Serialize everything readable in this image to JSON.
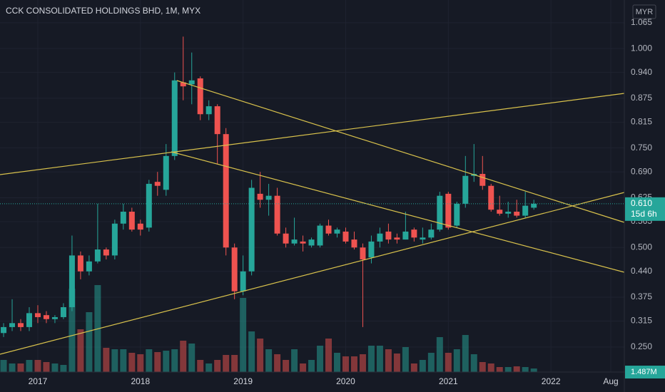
{
  "chart_data": {
    "type": "candlestick",
    "title": "CCK CONSOLIDATED HOLDINGS BHD, 1M, MYX",
    "currency": "MYR",
    "categories": [
      null,
      null,
      null,
      null,
      "2017",
      null,
      null,
      null,
      null,
      null,
      null,
      null,
      null,
      null,
      null,
      null,
      "2018",
      null,
      null,
      null,
      null,
      null,
      null,
      null,
      null,
      null,
      null,
      null,
      "2019",
      null,
      null,
      null,
      null,
      null,
      null,
      null,
      null,
      null,
      null,
      null,
      "2020",
      null,
      null,
      null,
      null,
      null,
      null,
      null,
      null,
      null,
      null,
      null,
      "2021",
      null,
      null,
      null,
      null,
      null,
      null,
      null,
      null,
      null,
      null,
      null,
      "2022",
      null,
      null,
      null,
      null,
      null,
      null,
      "Aug"
    ],
    "open": [
      0.285,
      0.3,
      0.31,
      0.3,
      0.335,
      0.33,
      0.32,
      0.325,
      0.35,
      0.48,
      0.44,
      0.465,
      0.495,
      0.48,
      0.56,
      0.59,
      0.56,
      0.55,
      0.665,
      0.645,
      0.73,
      0.915,
      0.91,
      0.925,
      0.835,
      0.855,
      0.785,
      0.5,
      0.39,
      0.44,
      0.635,
      0.62,
      0.63,
      0.535,
      0.51,
      0.515,
      0.505,
      0.505,
      0.555,
      0.535,
      0.54,
      0.52,
      0.5,
      0.475,
      0.515,
      0.54,
      0.525,
      0.52,
      0.545,
      0.52,
      0.525,
      0.545,
      0.635,
      0.555,
      0.61,
      0.68,
      0.685,
      0.655,
      0.595,
      0.585,
      0.59,
      0.58,
      0.6,
      null,
      null,
      null,
      null,
      null,
      null,
      null,
      null,
      null
    ],
    "high": [
      0.31,
      0.37,
      0.32,
      0.35,
      0.355,
      0.34,
      0.33,
      0.36,
      0.53,
      0.49,
      0.48,
      0.61,
      0.5,
      0.57,
      0.61,
      0.6,
      0.57,
      0.67,
      0.69,
      0.76,
      0.94,
      1.03,
      0.99,
      0.93,
      0.87,
      0.86,
      0.8,
      0.51,
      0.48,
      0.67,
      0.69,
      0.66,
      0.65,
      0.55,
      0.575,
      0.53,
      0.525,
      0.56,
      0.57,
      0.55,
      0.55,
      0.54,
      0.51,
      0.53,
      0.55,
      0.56,
      0.535,
      0.59,
      0.55,
      0.55,
      0.56,
      0.64,
      0.64,
      0.615,
      0.73,
      0.76,
      0.73,
      0.66,
      0.63,
      0.615,
      0.62,
      0.64,
      0.62,
      null,
      null,
      null,
      null,
      null,
      null,
      null,
      null,
      null
    ],
    "low": [
      0.275,
      0.29,
      0.29,
      0.29,
      0.31,
      0.31,
      0.31,
      0.32,
      0.34,
      0.42,
      0.43,
      0.46,
      0.47,
      0.47,
      0.545,
      0.54,
      0.53,
      0.54,
      0.63,
      0.63,
      0.72,
      0.87,
      0.86,
      0.82,
      0.82,
      0.71,
      0.48,
      0.37,
      0.38,
      0.43,
      0.6,
      0.58,
      0.53,
      0.5,
      0.505,
      0.49,
      0.5,
      0.5,
      0.53,
      0.525,
      0.51,
      0.495,
      0.3,
      0.46,
      0.5,
      0.51,
      0.51,
      0.52,
      0.515,
      0.51,
      0.52,
      0.54,
      0.545,
      0.55,
      0.6,
      0.665,
      0.645,
      0.59,
      0.58,
      0.575,
      0.575,
      0.575,
      0.595,
      null,
      null,
      null,
      null,
      null,
      null,
      null,
      null,
      null
    ],
    "close": [
      0.3,
      0.31,
      0.3,
      0.335,
      0.325,
      0.32,
      0.325,
      0.35,
      0.48,
      0.44,
      0.465,
      0.495,
      0.48,
      0.56,
      0.59,
      0.545,
      0.545,
      0.66,
      0.655,
      0.73,
      0.92,
      0.905,
      0.92,
      0.835,
      0.855,
      0.785,
      0.5,
      0.39,
      0.44,
      0.65,
      0.62,
      0.63,
      0.535,
      0.51,
      0.52,
      0.51,
      0.52,
      0.555,
      0.535,
      0.545,
      0.515,
      0.5,
      0.47,
      0.515,
      0.535,
      0.52,
      0.52,
      0.54,
      0.525,
      0.525,
      0.545,
      0.63,
      0.55,
      0.61,
      0.68,
      0.685,
      0.655,
      0.595,
      0.585,
      0.59,
      0.58,
      0.605,
      0.61,
      null,
      null,
      null,
      null,
      null,
      null,
      null,
      null,
      null
    ],
    "volume": [
      5100000,
      3600000,
      3600000,
      5100000,
      5100000,
      4200000,
      3600000,
      3000000,
      35100000,
      18000000,
      25200000,
      36600000,
      10200000,
      9600000,
      9600000,
      8100000,
      7500000,
      9600000,
      8400000,
      9000000,
      9600000,
      13200000,
      12000000,
      5100000,
      3600000,
      5100000,
      7200000,
      7200000,
      31200000,
      17100000,
      14100000,
      9600000,
      7500000,
      5100000,
      9600000,
      3600000,
      5100000,
      11100000,
      14100000,
      8100000,
      6600000,
      6600000,
      7500000,
      11100000,
      11100000,
      9600000,
      7800000,
      10500000,
      3600000,
      5100000,
      8100000,
      14700000,
      8100000,
      9600000,
      15600000,
      7500000,
      4200000,
      3600000,
      2100000,
      2100000,
      2400000,
      2100000,
      1487000,
      null,
      null,
      null,
      null,
      null,
      null,
      null,
      null,
      null
    ],
    "last_close_label": "0.610",
    "countdown": "15d 6h",
    "last_volume_label": "1.487M",
    "colors": {
      "up": "#26a69a",
      "down": "#ef5350"
    },
    "ylim": [
      0.187,
      1.122
    ],
    "yticks": [
      1.065,
      {
        "value": 1,
        "label": "1.000"
      },
      {
        "value": 0.94,
        "label": "0.940"
      },
      0.875,
      0.815,
      {
        "value": 0.75,
        "label": "0.750"
      },
      {
        "value": 0.69,
        "label": "0.690"
      },
      0.625,
      0.565,
      {
        "value": 0.5,
        "label": "0.500"
      },
      {
        "value": 0.44,
        "label": "0.440"
      },
      0.375,
      0.315,
      {
        "value": 0.25,
        "label": "0.250"
      }
    ],
    "y2lim": [
      0,
      156600000
    ],
    "grid": true
  }
}
